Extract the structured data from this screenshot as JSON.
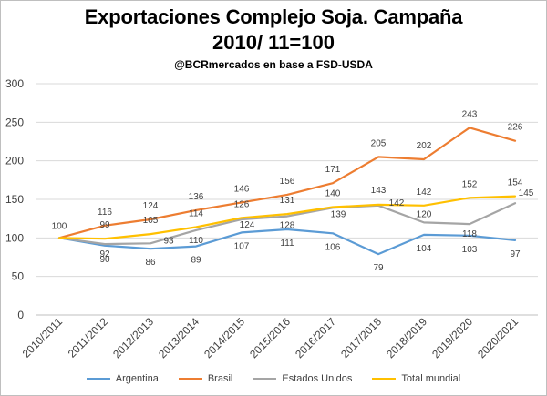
{
  "chart_data": {
    "type": "line",
    "title": "Exportaciones Complejo Soja. Campaña",
    "title_line2": "2010/ 11=100",
    "subtitle": "@BCRmercados  en base a FSD-USDA",
    "categories": [
      "2010/2011",
      "2011/2012",
      "2012/2013",
      "2013/2014",
      "2014/2015",
      "2015/2016",
      "2016/2017",
      "2017/2018",
      "2018/2019",
      "2019/2020",
      "2020/2021"
    ],
    "ylim": [
      0,
      300
    ],
    "yticks": [
      0,
      50,
      100,
      150,
      200,
      250,
      300
    ],
    "grid": true,
    "legend_position": "bottom",
    "series": [
      {
        "name": "Argentina",
        "color": "#5b9bd5",
        "values": [
          100,
          90,
          86,
          89,
          107,
          111,
          106,
          79,
          104,
          103,
          97
        ],
        "labels": [
          "100",
          "90",
          "86",
          "89",
          "107",
          "111",
          "106",
          "79",
          "104",
          "103",
          "97"
        ]
      },
      {
        "name": "Brasil",
        "color": "#ed7d31",
        "values": [
          100,
          116,
          124,
          136,
          146,
          156,
          171,
          205,
          202,
          243,
          226
        ],
        "labels": [
          "",
          "116",
          "124",
          "136",
          "146",
          "156",
          "171",
          "205",
          "202",
          "243",
          "226"
        ]
      },
      {
        "name": "Estados Unidos",
        "color": "#a5a5a5",
        "values": [
          100,
          92,
          93,
          110,
          124,
          128,
          139,
          142,
          120,
          118,
          145
        ],
        "labels": [
          "",
          "92",
          "93",
          "110",
          "124",
          "128",
          "139",
          "142",
          "120",
          "118",
          "145"
        ]
      },
      {
        "name": "Total mundial",
        "color": "#ffc000",
        "values": [
          100,
          99,
          105,
          114,
          126,
          131,
          140,
          143,
          142,
          152,
          154
        ],
        "labels": [
          "",
          "99",
          "105",
          "114",
          "126",
          "131",
          "140",
          "143",
          "142",
          "152",
          "154"
        ]
      }
    ]
  }
}
